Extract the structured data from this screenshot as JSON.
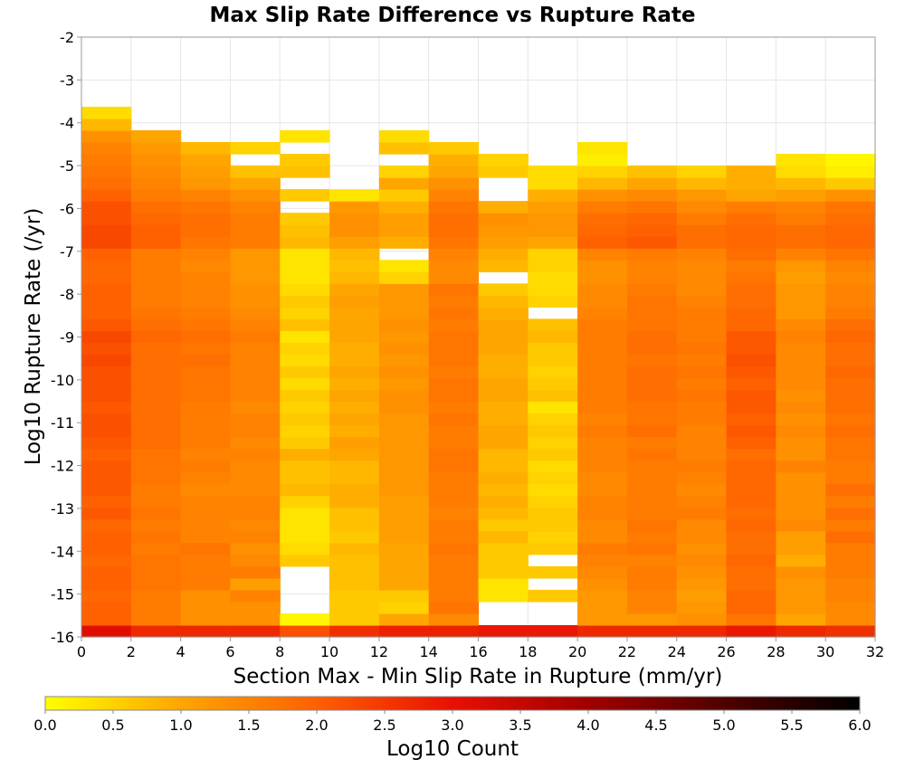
{
  "chart_data": {
    "type": "heatmap",
    "title": "Max Slip Rate Difference vs Rupture Rate",
    "xlabel": "Section Max - Min Slip Rate in Rupture (mm/yr)",
    "ylabel": "Log10 Rupture Rate (/yr)",
    "xlim": [
      0,
      32
    ],
    "ylim": [
      -16,
      -2
    ],
    "x_bin_width": 2,
    "y_bin_height": 0.275,
    "x_ticks": [
      "0",
      "2",
      "4",
      "6",
      "8",
      "10",
      "12",
      "14",
      "16",
      "18",
      "20",
      "22",
      "24",
      "26",
      "28",
      "30",
      "32"
    ],
    "y_ticks": [
      "-2",
      "-3",
      "-4",
      "-5",
      "-6",
      "-7",
      "-8",
      "-9",
      "-10",
      "-11",
      "-12",
      "-13",
      "-14",
      "-15",
      "-16"
    ],
    "grid": true,
    "colorbar": {
      "label": "Log10 Count",
      "min": 0.0,
      "max": 6.0,
      "ticks": [
        "0.0",
        "0.5",
        "1.0",
        "1.5",
        "2.0",
        "2.5",
        "3.0",
        "3.5",
        "4.0",
        "4.5",
        "5.0",
        "5.5",
        "6.0"
      ],
      "colors": [
        "#ffff00",
        "#ffa500",
        "#ff6000",
        "#e81000",
        "#a00000",
        "#500000",
        "#000000"
      ]
    },
    "rows_bottom_to_top": [
      [
        3.1,
        2.7,
        2.7,
        2.7,
        2.2,
        2.6,
        2.8,
        2.8,
        2.9,
        2.9,
        2.7,
        2.7,
        2.7,
        2.9,
        2.7,
        2.6
      ],
      [
        2.0,
        1.6,
        1.3,
        1.3,
        0.1,
        0.6,
        1.0,
        1.4,
        null,
        null,
        1.2,
        1.2,
        1.3,
        1.7,
        1.0,
        1.4
      ],
      [
        2.0,
        1.6,
        1.3,
        1.3,
        null,
        0.6,
        0.5,
        1.7,
        null,
        null,
        1.2,
        1.5,
        1.2,
        1.9,
        1.2,
        1.4
      ],
      [
        1.9,
        1.6,
        1.3,
        1.5,
        null,
        0.6,
        0.6,
        1.6,
        0.3,
        0.6,
        1.2,
        1.5,
        1.1,
        1.9,
        1.2,
        1.5
      ],
      [
        2.0,
        1.7,
        1.6,
        1.1,
        null,
        0.7,
        1.0,
        1.6,
        0.3,
        null,
        1.3,
        1.6,
        1.2,
        1.8,
        1.2,
        1.5
      ],
      [
        2.0,
        1.7,
        1.6,
        1.6,
        null,
        0.7,
        1.0,
        1.6,
        0.6,
        0.6,
        1.4,
        1.6,
        1.3,
        1.8,
        1.3,
        1.6
      ],
      [
        1.9,
        1.7,
        1.6,
        1.4,
        0.6,
        0.7,
        1.0,
        1.6,
        0.6,
        null,
        1.5,
        1.5,
        1.4,
        1.9,
        0.9,
        1.6
      ],
      [
        2.0,
        1.6,
        1.7,
        1.3,
        0.4,
        0.8,
        1.0,
        1.7,
        0.6,
        0.6,
        1.6,
        1.7,
        1.3,
        1.8,
        1.1,
        1.6
      ],
      [
        2.0,
        1.7,
        1.5,
        1.5,
        0.3,
        0.6,
        1.1,
        1.6,
        0.8,
        0.5,
        1.4,
        1.6,
        1.4,
        1.8,
        1.1,
        1.8
      ],
      [
        1.9,
        1.6,
        1.5,
        1.4,
        0.3,
        0.7,
        1.1,
        1.6,
        0.6,
        0.6,
        1.4,
        1.7,
        1.4,
        1.9,
        1.4,
        1.6
      ],
      [
        2.1,
        1.7,
        1.5,
        1.5,
        0.3,
        0.7,
        1.1,
        1.5,
        0.8,
        0.6,
        1.5,
        1.6,
        1.6,
        1.8,
        1.3,
        1.8
      ],
      [
        2.0,
        1.6,
        1.5,
        1.5,
        0.5,
        0.9,
        1.1,
        1.6,
        0.9,
        0.5,
        1.5,
        1.6,
        1.5,
        1.9,
        1.3,
        1.6
      ],
      [
        2.1,
        1.6,
        1.4,
        1.4,
        0.8,
        0.9,
        1.2,
        1.6,
        0.8,
        0.4,
        1.4,
        1.6,
        1.4,
        1.9,
        1.3,
        1.8
      ],
      [
        2.1,
        1.7,
        1.5,
        1.4,
        0.7,
        0.8,
        1.2,
        1.6,
        0.9,
        0.5,
        1.4,
        1.6,
        1.5,
        1.9,
        1.3,
        1.6
      ],
      [
        2.1,
        1.7,
        1.6,
        1.4,
        0.7,
        0.8,
        1.2,
        1.7,
        0.8,
        0.4,
        1.5,
        1.6,
        1.6,
        1.9,
        1.5,
        1.6
      ],
      [
        2.0,
        1.7,
        1.5,
        1.5,
        0.9,
        1.0,
        1.2,
        1.7,
        0.8,
        0.6,
        1.5,
        1.7,
        1.5,
        1.8,
        1.3,
        1.7
      ],
      [
        2.1,
        1.8,
        1.6,
        1.4,
        0.6,
        1.1,
        1.2,
        1.6,
        1.0,
        0.5,
        1.5,
        1.6,
        1.5,
        2.0,
        1.3,
        1.7
      ],
      [
        2.2,
        1.8,
        1.6,
        1.5,
        0.5,
        0.9,
        1.2,
        1.6,
        1.0,
        0.6,
        1.6,
        1.8,
        1.5,
        2.1,
        1.4,
        1.8
      ],
      [
        2.2,
        1.8,
        1.6,
        1.5,
        0.6,
        1.0,
        1.2,
        1.7,
        0.9,
        0.5,
        1.5,
        1.7,
        1.6,
        2.0,
        1.3,
        1.7
      ],
      [
        2.1,
        1.8,
        1.6,
        1.4,
        0.5,
        0.9,
        1.3,
        1.6,
        0.9,
        0.3,
        1.6,
        1.7,
        1.6,
        2.1,
        1.4,
        1.8
      ],
      [
        2.2,
        1.8,
        1.7,
        1.5,
        0.6,
        1.0,
        1.3,
        1.7,
        1.0,
        0.7,
        1.6,
        1.8,
        1.7,
        2.1,
        1.3,
        1.8
      ],
      [
        2.2,
        1.8,
        1.7,
        1.5,
        0.4,
        0.9,
        1.2,
        1.7,
        1.0,
        0.6,
        1.6,
        1.8,
        1.6,
        2.0,
        1.4,
        1.8
      ],
      [
        2.2,
        1.8,
        1.7,
        1.5,
        0.6,
        1.0,
        1.3,
        1.6,
        0.9,
        0.5,
        1.6,
        1.8,
        1.7,
        2.1,
        1.4,
        1.9
      ],
      [
        2.3,
        1.8,
        1.8,
        1.5,
        0.4,
        0.9,
        1.2,
        1.7,
        0.9,
        0.6,
        1.6,
        1.7,
        1.6,
        2.2,
        1.4,
        1.8
      ],
      [
        2.2,
        1.8,
        1.7,
        1.5,
        0.5,
        0.9,
        1.3,
        1.7,
        1.0,
        0.6,
        1.6,
        1.8,
        1.7,
        2.1,
        1.4,
        1.8
      ],
      [
        2.3,
        1.9,
        1.8,
        1.6,
        0.3,
        1.0,
        1.2,
        1.7,
        1.0,
        0.8,
        1.6,
        1.8,
        1.6,
        2.1,
        1.5,
        1.9
      ],
      [
        2.1,
        1.8,
        1.7,
        1.5,
        0.7,
        1.0,
        1.3,
        1.6,
        1.0,
        0.7,
        1.6,
        1.7,
        1.6,
        1.9,
        1.4,
        1.8
      ],
      [
        2.0,
        1.7,
        1.6,
        1.4,
        0.5,
        1.0,
        1.2,
        1.7,
        0.9,
        null,
        1.5,
        1.7,
        1.6,
        1.9,
        1.2,
        1.6
      ],
      [
        2.0,
        1.6,
        1.5,
        1.3,
        0.6,
        1.1,
        1.2,
        1.6,
        0.8,
        0.5,
        1.4,
        1.7,
        1.5,
        1.8,
        1.2,
        1.5
      ],
      [
        2.0,
        1.6,
        1.5,
        1.3,
        0.4,
        1.0,
        1.2,
        1.7,
        0.6,
        0.4,
        1.4,
        1.6,
        1.4,
        1.8,
        1.2,
        1.5
      ],
      [
        1.9,
        1.6,
        1.5,
        1.2,
        0.3,
        0.8,
        0.5,
        1.4,
        null,
        0.4,
        1.3,
        1.5,
        1.4,
        1.7,
        1.1,
        1.4
      ],
      [
        1.9,
        1.6,
        1.4,
        1.2,
        0.3,
        0.7,
        0.3,
        1.4,
        0.8,
        0.5,
        1.3,
        1.5,
        1.4,
        1.6,
        1.2,
        1.5
      ],
      [
        2.0,
        1.6,
        1.5,
        1.2,
        0.3,
        0.8,
        null,
        1.5,
        0.9,
        0.5,
        1.5,
        1.6,
        1.5,
        1.8,
        1.5,
        1.7
      ],
      [
        2.3,
        2.0,
        1.7,
        1.6,
        0.8,
        1.1,
        0.9,
        1.7,
        1.1,
        1.0,
        2.0,
        2.1,
        1.8,
        1.9,
        1.8,
        1.9
      ],
      [
        2.3,
        2.0,
        1.8,
        1.6,
        0.7,
        1.3,
        1.1,
        1.8,
        1.2,
        1.2,
        1.9,
        2.0,
        1.8,
        1.9,
        1.8,
        1.9
      ],
      [
        2.2,
        1.9,
        1.8,
        1.6,
        0.6,
        1.3,
        1.1,
        1.8,
        1.3,
        1.2,
        1.8,
        1.9,
        1.6,
        1.8,
        1.6,
        1.8
      ],
      [
        2.2,
        1.8,
        1.7,
        1.5,
        null,
        1.2,
        0.9,
        1.7,
        0.9,
        1.1,
        1.6,
        1.7,
        1.4,
        1.6,
        1.5,
        1.7
      ],
      [
        2.0,
        1.6,
        1.5,
        1.3,
        0.6,
        0.3,
        0.6,
        1.5,
        null,
        0.9,
        1.3,
        1.4,
        1.2,
        1.0,
        1.1,
        1.3
      ],
      [
        1.8,
        1.5,
        1.2,
        1.0,
        null,
        null,
        1.0,
        1.3,
        null,
        0.4,
        0.8,
        1.0,
        0.8,
        0.9,
        0.8,
        0.6
      ],
      [
        1.7,
        1.4,
        1.1,
        0.7,
        0.7,
        null,
        0.5,
        1.0,
        0.6,
        0.4,
        0.5,
        0.7,
        0.5,
        0.9,
        0.4,
        0.2
      ],
      [
        1.6,
        1.3,
        1.0,
        null,
        0.6,
        null,
        null,
        0.9,
        0.5,
        null,
        0.2,
        null,
        null,
        null,
        0.3,
        0.1
      ],
      [
        1.5,
        1.2,
        0.8,
        0.5,
        null,
        null,
        0.7,
        0.6,
        null,
        null,
        0.3,
        null,
        null,
        null,
        null,
        null
      ],
      [
        1.3,
        1.0,
        null,
        null,
        0.3,
        null,
        0.4,
        null,
        null,
        null,
        null,
        null,
        null,
        null,
        null,
        null
      ],
      [
        0.8,
        null,
        null,
        null,
        null,
        null,
        null,
        null,
        null,
        null,
        null,
        null,
        null,
        null,
        null,
        null
      ],
      [
        0.4,
        null,
        null,
        null,
        null,
        null,
        null,
        null,
        null,
        null,
        null,
        null,
        null,
        null,
        null,
        null
      ]
    ]
  }
}
